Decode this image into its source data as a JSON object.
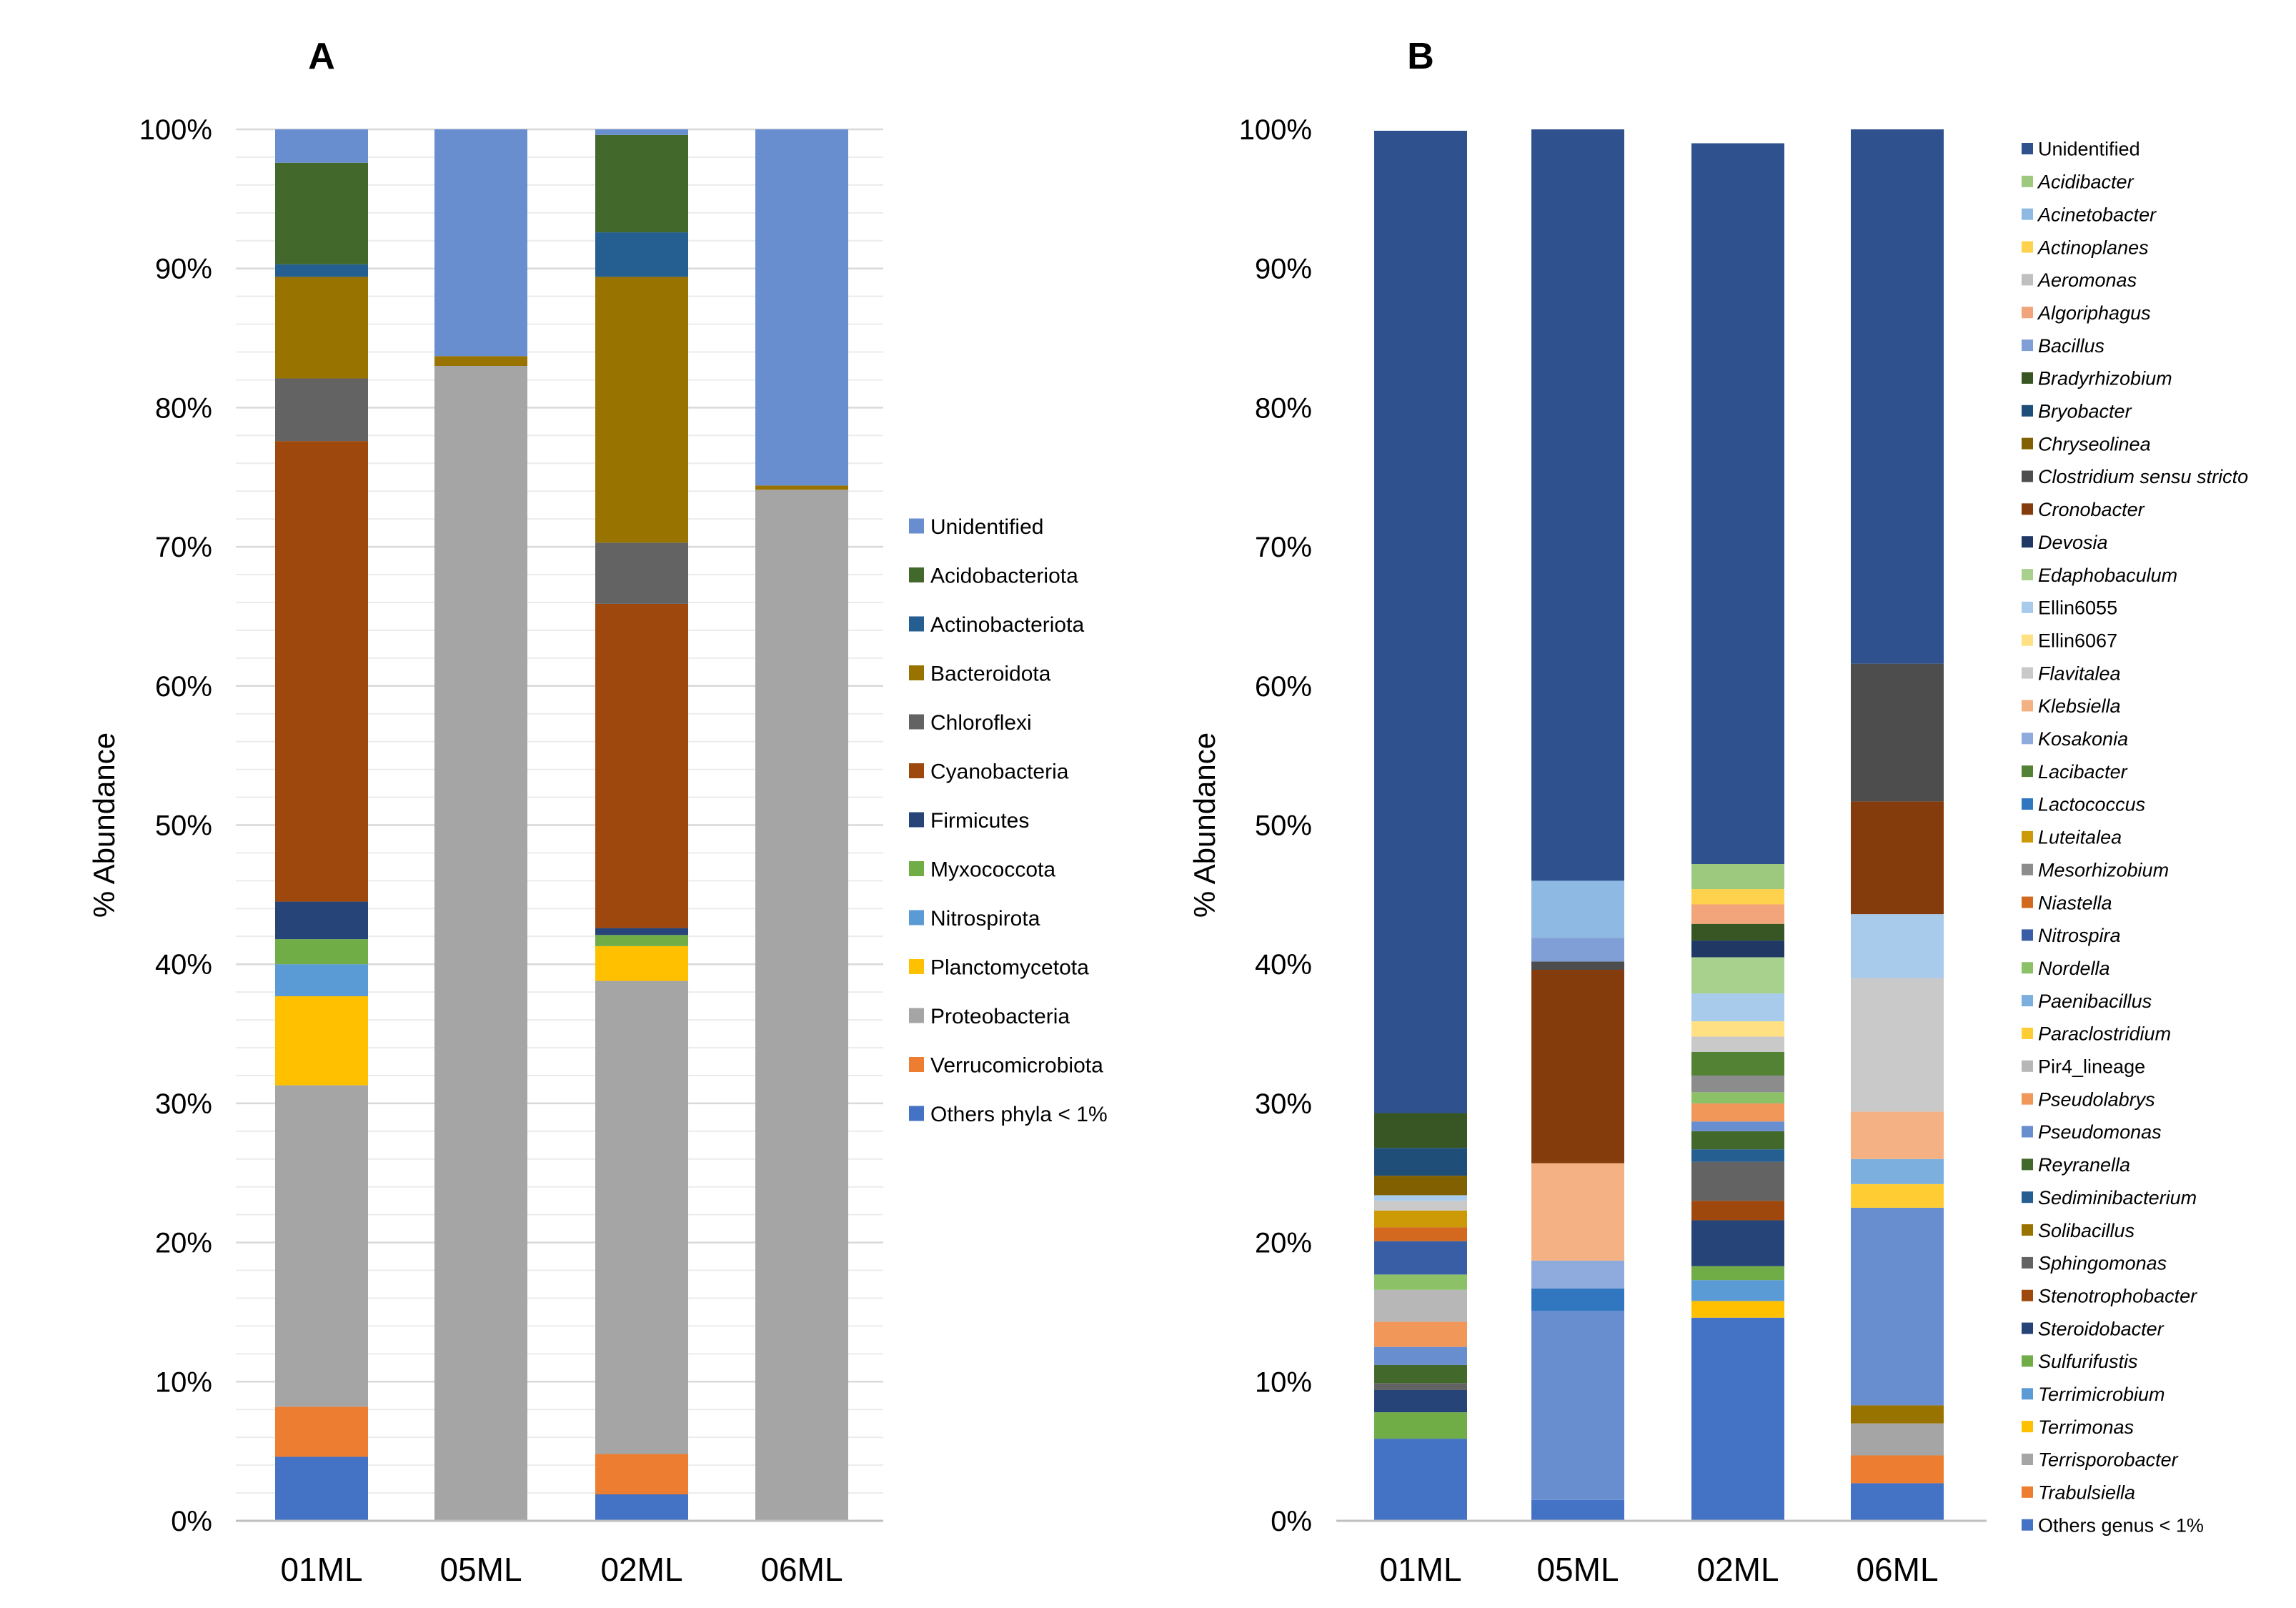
{
  "panels": {
    "A": {
      "label": "A"
    },
    "B": {
      "label": "B"
    }
  },
  "chart_data": [
    {
      "type": "bar",
      "stacked": true,
      "panel": "A",
      "title": "",
      "ylabel": "% Abundance",
      "xlabel": "",
      "ylim": [
        0,
        100
      ],
      "y_ticks": [
        "0%",
        "10%",
        "20%",
        "30%",
        "40%",
        "50%",
        "60%",
        "70%",
        "80%",
        "90%",
        "100%"
      ],
      "grid": "horizontal",
      "legend_position": "right",
      "categories": [
        "01ML",
        "05ML",
        "02ML",
        "06ML"
      ],
      "series": [
        {
          "name": "Others phyla < 1%",
          "color": "#4472C4",
          "values": [
            4.6,
            0,
            1.9,
            0
          ]
        },
        {
          "name": "Verrucomicrobiota",
          "color": "#ED7D31",
          "values": [
            3.6,
            0,
            2.9,
            0
          ]
        },
        {
          "name": "Proteobacteria",
          "color": "#A5A5A5",
          "values": [
            23.1,
            83.0,
            34.0,
            74.1
          ]
        },
        {
          "name": "Planctomycetota",
          "color": "#FFC000",
          "values": [
            6.4,
            0,
            2.5,
            0
          ]
        },
        {
          "name": "Nitrospirota",
          "color": "#5B9BD5",
          "values": [
            2.3,
            0,
            0,
            0
          ]
        },
        {
          "name": "Myxococcota",
          "color": "#70AD47",
          "values": [
            1.8,
            0,
            0.8,
            0
          ]
        },
        {
          "name": "Firmicutes",
          "color": "#264478",
          "values": [
            2.7,
            0,
            0.5,
            0
          ]
        },
        {
          "name": "Cyanobacteria",
          "color": "#9E480E",
          "values": [
            33.1,
            0,
            23.3,
            0
          ]
        },
        {
          "name": "Chloroflexi",
          "color": "#636363",
          "values": [
            4.5,
            0,
            4.4,
            0
          ]
        },
        {
          "name": "Bacteroidota",
          "color": "#997300",
          "values": [
            7.3,
            0.7,
            19.1,
            0.3
          ]
        },
        {
          "name": "Actinobacteriota",
          "color": "#255E91",
          "values": [
            0.9,
            0,
            3.2,
            0
          ]
        },
        {
          "name": "Acidobacteriota",
          "color": "#43682B",
          "values": [
            7.3,
            0,
            7.0,
            0
          ]
        },
        {
          "name": "Unidentified",
          "color": "#698ED0",
          "values": [
            2.4,
            16.3,
            0.4,
            25.6
          ]
        }
      ]
    },
    {
      "type": "bar",
      "stacked": true,
      "panel": "B",
      "title": "",
      "ylabel": "% Abundance",
      "xlabel": "",
      "ylim": [
        0,
        100
      ],
      "y_ticks": [
        "0%",
        "10%",
        "20%",
        "30%",
        "40%",
        "50%",
        "60%",
        "70%",
        "80%",
        "90%",
        "100%"
      ],
      "grid": "none",
      "legend_position": "right",
      "categories": [
        "01ML",
        "05ML",
        "02ML",
        "06ML"
      ],
      "series": [
        {
          "name": "Others genus < 1%",
          "italic": false,
          "color": "#4472C4",
          "values": [
            5.9,
            1.5,
            14.6,
            2.7
          ]
        },
        {
          "name": "Trabulsiella",
          "italic": true,
          "color": "#ED7D31",
          "values": [
            0,
            0,
            0,
            2.0
          ]
        },
        {
          "name": "Terrisporobacter",
          "italic": true,
          "color": "#A5A5A5",
          "values": [
            0,
            0,
            0,
            2.3
          ]
        },
        {
          "name": "Terrimonas",
          "italic": true,
          "color": "#FFC000",
          "values": [
            0,
            0,
            1.2,
            0
          ]
        },
        {
          "name": "Terrimicrobium",
          "italic": true,
          "color": "#5B9BD5",
          "values": [
            0,
            0,
            1.5,
            0
          ]
        },
        {
          "name": "Sulfurifustis",
          "italic": true,
          "color": "#70AD47",
          "values": [
            1.9,
            0,
            1.0,
            0
          ]
        },
        {
          "name": "Steroidobacter",
          "italic": true,
          "color": "#264478",
          "values": [
            1.6,
            0,
            3.3,
            0
          ]
        },
        {
          "name": "Stenotrophobacter",
          "italic": true,
          "color": "#9E480E",
          "values": [
            0,
            0,
            1.4,
            0
          ]
        },
        {
          "name": "Sphingomonas",
          "italic": true,
          "color": "#636363",
          "values": [
            0.5,
            0,
            2.8,
            0
          ]
        },
        {
          "name": "Solibacillus",
          "italic": true,
          "color": "#997300",
          "values": [
            0,
            0,
            0,
            1.3
          ]
        },
        {
          "name": "Sediminibacterium",
          "italic": true,
          "color": "#255E91",
          "values": [
            0,
            0,
            0.9,
            0
          ]
        },
        {
          "name": "Reyranella",
          "italic": true,
          "color": "#43682B",
          "values": [
            1.3,
            0,
            1.3,
            0
          ]
        },
        {
          "name": "Pseudomonas",
          "italic": true,
          "color": "#698ED0",
          "values": [
            1.3,
            13.6,
            0.7,
            14.2
          ]
        },
        {
          "name": "Pseudolabrys",
          "italic": true,
          "color": "#F1975A",
          "values": [
            1.8,
            0,
            1.3,
            0
          ]
        },
        {
          "name": "Pir4_lineage",
          "italic": false,
          "color": "#B7B7B7",
          "values": [
            2.3,
            0,
            0,
            0
          ]
        },
        {
          "name": "Paraclostridium",
          "italic": true,
          "color": "#FFCD33",
          "values": [
            0,
            0,
            0,
            1.7
          ]
        },
        {
          "name": "Paenibacillus",
          "italic": true,
          "color": "#7CAFDD",
          "values": [
            0,
            0,
            0,
            1.8
          ]
        },
        {
          "name": "Nordella",
          "italic": true,
          "color": "#8CC168",
          "values": [
            1.1,
            0,
            0.8,
            0
          ]
        },
        {
          "name": "Nitrospira",
          "italic": true,
          "color": "#3A5EA6",
          "values": [
            2.4,
            0,
            0,
            0
          ]
        },
        {
          "name": "Niastella",
          "italic": true,
          "color": "#D2691E",
          "values": [
            1.0,
            0,
            0,
            0
          ]
        },
        {
          "name": "Mesorhizobium",
          "italic": true,
          "color": "#8C8C8C",
          "values": [
            0,
            0,
            1.2,
            0
          ]
        },
        {
          "name": "Luteitalea",
          "italic": true,
          "color": "#CC9A06",
          "values": [
            1.2,
            0,
            0,
            0
          ]
        },
        {
          "name": "Lactococcus",
          "italic": true,
          "color": "#3077C0",
          "values": [
            0,
            1.6,
            0,
            0
          ]
        },
        {
          "name": "Lacibacter",
          "italic": true,
          "color": "#548235",
          "values": [
            0,
            0,
            1.7,
            0
          ]
        },
        {
          "name": "Kosakonia",
          "italic": true,
          "color": "#8FAADC",
          "values": [
            0,
            2.0,
            0,
            0
          ]
        },
        {
          "name": "Klebsiella",
          "italic": true,
          "color": "#F4B183",
          "values": [
            0,
            7.0,
            0,
            3.4
          ]
        },
        {
          "name": "Flavitalea",
          "italic": true,
          "color": "#C9C9C9",
          "values": [
            0.7,
            0,
            1.1,
            9.6
          ]
        },
        {
          "name": "Ellin6067",
          "italic": false,
          "color": "#FFE083",
          "values": [
            0,
            0,
            1.1,
            0
          ]
        },
        {
          "name": "Ellin6055",
          "italic": false,
          "color": "#A9CBEB",
          "values": [
            0.4,
            0,
            2.0,
            4.6
          ]
        },
        {
          "name": "Edaphobaculum",
          "italic": true,
          "color": "#A9D18E",
          "values": [
            0,
            0,
            2.6,
            0
          ]
        },
        {
          "name": "Devosia",
          "italic": true,
          "color": "#1F3864",
          "values": [
            0,
            0,
            1.2,
            0
          ]
        },
        {
          "name": "Cronobacter",
          "italic": true,
          "color": "#843C0C",
          "values": [
            0,
            13.9,
            0,
            8.1
          ]
        },
        {
          "name": "Clostridium sensu stricto",
          "italic": true,
          "color": "#4D4D4D",
          "values": [
            0,
            0.6,
            0,
            9.9
          ]
        },
        {
          "name": "Chryseolinea",
          "italic": true,
          "color": "#806000",
          "values": [
            1.4,
            0,
            0,
            0
          ]
        },
        {
          "name": "Bryobacter",
          "italic": true,
          "color": "#1F4E79",
          "values": [
            2.0,
            0,
            0,
            0
          ]
        },
        {
          "name": "Bradyrhizobium",
          "italic": true,
          "color": "#375623",
          "values": [
            2.5,
            0,
            1.2,
            0
          ]
        },
        {
          "name": "Bacillus",
          "italic": true,
          "color": "#7F9FD6",
          "values": [
            0,
            1.7,
            0,
            0
          ]
        },
        {
          "name": "Algoriphagus",
          "italic": true,
          "color": "#F2A57A",
          "values": [
            0,
            0,
            1.4,
            0
          ]
        },
        {
          "name": "Aeromonas",
          "italic": true,
          "color": "#BFBFBF",
          "values": [
            0,
            0,
            0,
            0
          ]
        },
        {
          "name": "Actinoplanes",
          "italic": true,
          "color": "#FFD24D",
          "values": [
            0,
            0,
            1.1,
            0
          ]
        },
        {
          "name": "Acinetobacter",
          "italic": true,
          "color": "#8DB9E3",
          "values": [
            0,
            4.1,
            0,
            0
          ]
        },
        {
          "name": "Acidibacter",
          "italic": true,
          "color": "#9CC97E",
          "values": [
            0,
            0,
            1.8,
            0
          ]
        },
        {
          "name": "Unidentified",
          "italic": false,
          "color": "#2F528F",
          "values": [
            70.6,
            54.0,
            51.8,
            38.4
          ]
        }
      ]
    }
  ]
}
